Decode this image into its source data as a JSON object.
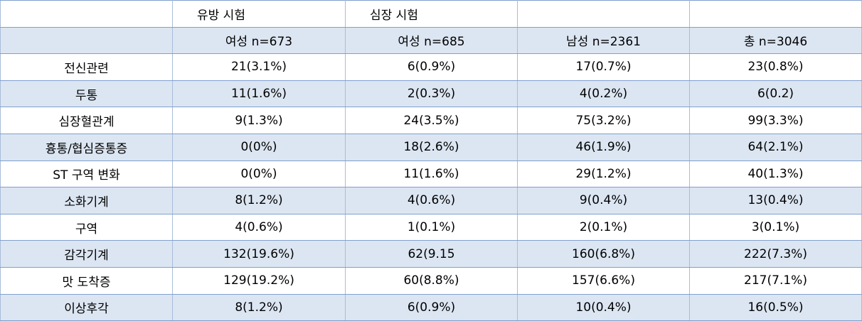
{
  "table": {
    "group_headers": [
      "유방 시험",
      "심장 시험"
    ],
    "column_headers": [
      "여성 n=673",
      "여성 n=685",
      "남성 n=2361",
      "총 n=3046"
    ],
    "rows": [
      {
        "label": "전신관련",
        "cells": [
          "21(3.1%)",
          "6(0.9%)",
          "17(0.7%)",
          "23(0.8%)"
        ]
      },
      {
        "label": "두통",
        "cells": [
          "11(1.6%)",
          "2(0.3%)",
          "4(0.2%)",
          "6(0.2)"
        ]
      },
      {
        "label": "심장혈관계",
        "cells": [
          "9(1.3%)",
          "24(3.5%)",
          "75(3.2%)",
          "99(3.3%)"
        ]
      },
      {
        "label": "흉통/협심증통증",
        "cells": [
          "0(0%)",
          "18(2.6%)",
          "46(1.9%)",
          "64(2.1%)"
        ]
      },
      {
        "label": "ST 구역 변화",
        "cells": [
          "0(0%)",
          "11(1.6%)",
          "29(1.2%)",
          "40(1.3%)"
        ]
      },
      {
        "label": "소화기계",
        "cells": [
          "8(1.2%)",
          "4(0.6%)",
          "9(0.4%)",
          "13(0.4%)"
        ]
      },
      {
        "label": "구역",
        "cells": [
          "4(0.6%)",
          "1(0.1%)",
          "2(0.1%)",
          "3(0.1%)"
        ]
      },
      {
        "label": "감각기계",
        "cells": [
          "132(19.6%)",
          "62(9.15",
          "160(6.8%)",
          "222(7.3%)"
        ]
      },
      {
        "label": "맛 도착증",
        "cells": [
          "129(19.2%)",
          "60(8.8%)",
          "157(6.6%)",
          "217(7.1%)"
        ]
      },
      {
        "label": "이상후각",
        "cells": [
          "8(1.2%)",
          "6(0.9%)",
          "10(0.4%)",
          "16(0.5%)"
        ]
      }
    ]
  }
}
